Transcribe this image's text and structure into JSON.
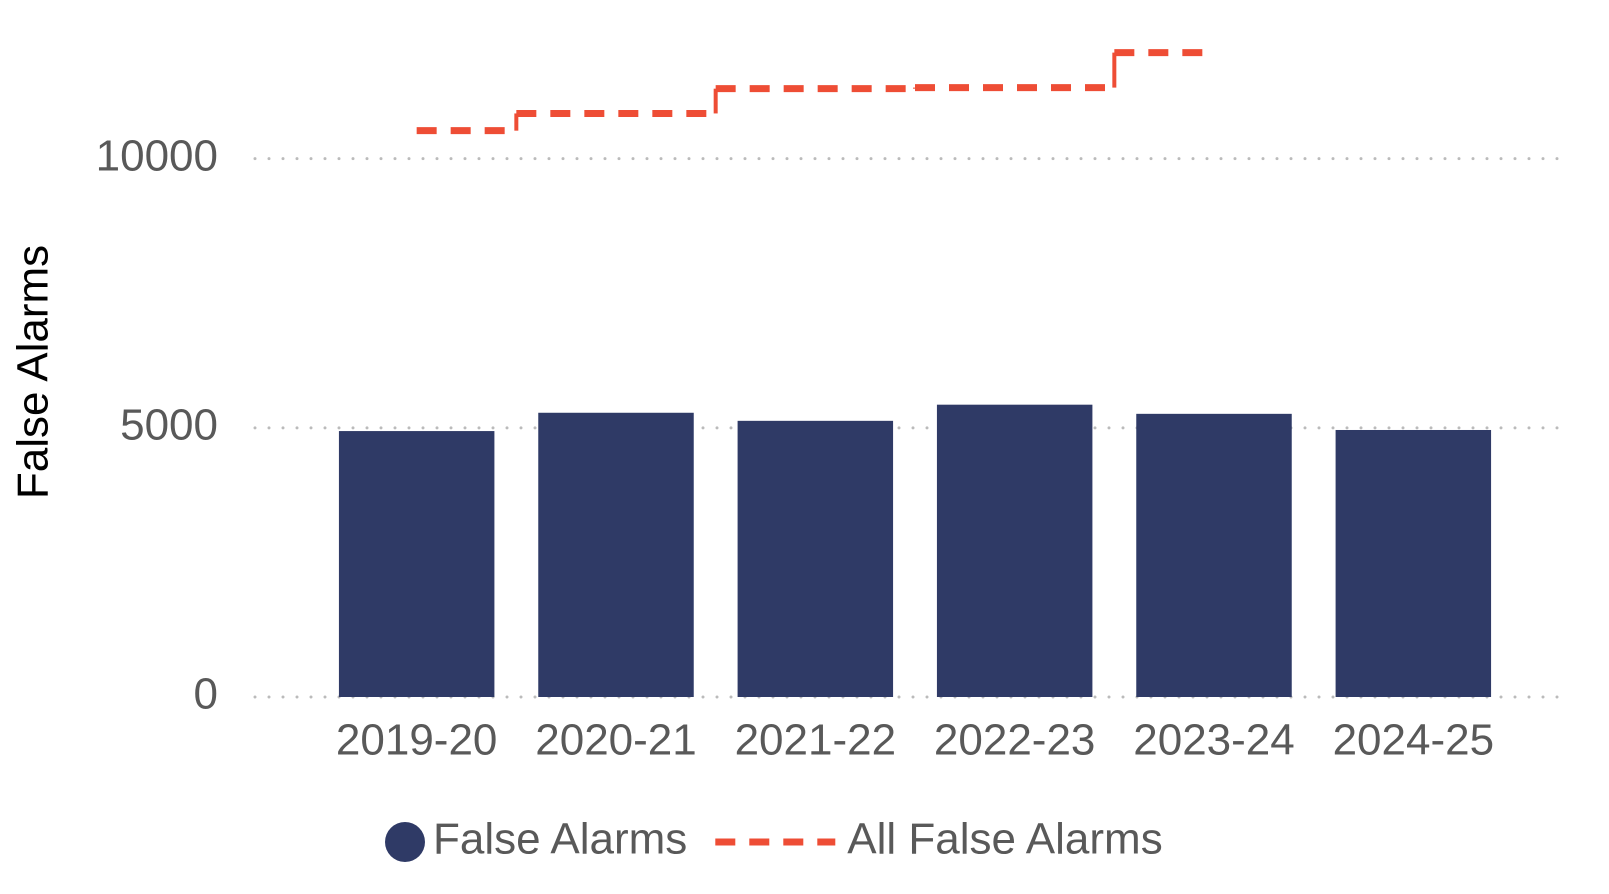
{
  "chart_data": {
    "type": "bar",
    "y_label": "False Alarms",
    "categories": [
      "2019-20",
      "2020-21",
      "2021-22",
      "2022-23",
      "2023-24",
      "2024-25"
    ],
    "series": [
      {
        "name": "False Alarms",
        "type": "bar",
        "color": "#2f3a66",
        "values": [
          4940,
          5280,
          5130,
          5430,
          5260,
          4960
        ]
      },
      {
        "name": "All False Alarms",
        "type": "step",
        "color": "#ee4d35",
        "dashed": true,
        "values": [
          10520,
          10840,
          11300,
          11320,
          11970,
          null
        ]
      }
    ],
    "ylim": [
      0,
      12000
    ],
    "yticks": [
      0,
      5000,
      10000
    ],
    "grid": true,
    "legend": "bottom"
  }
}
